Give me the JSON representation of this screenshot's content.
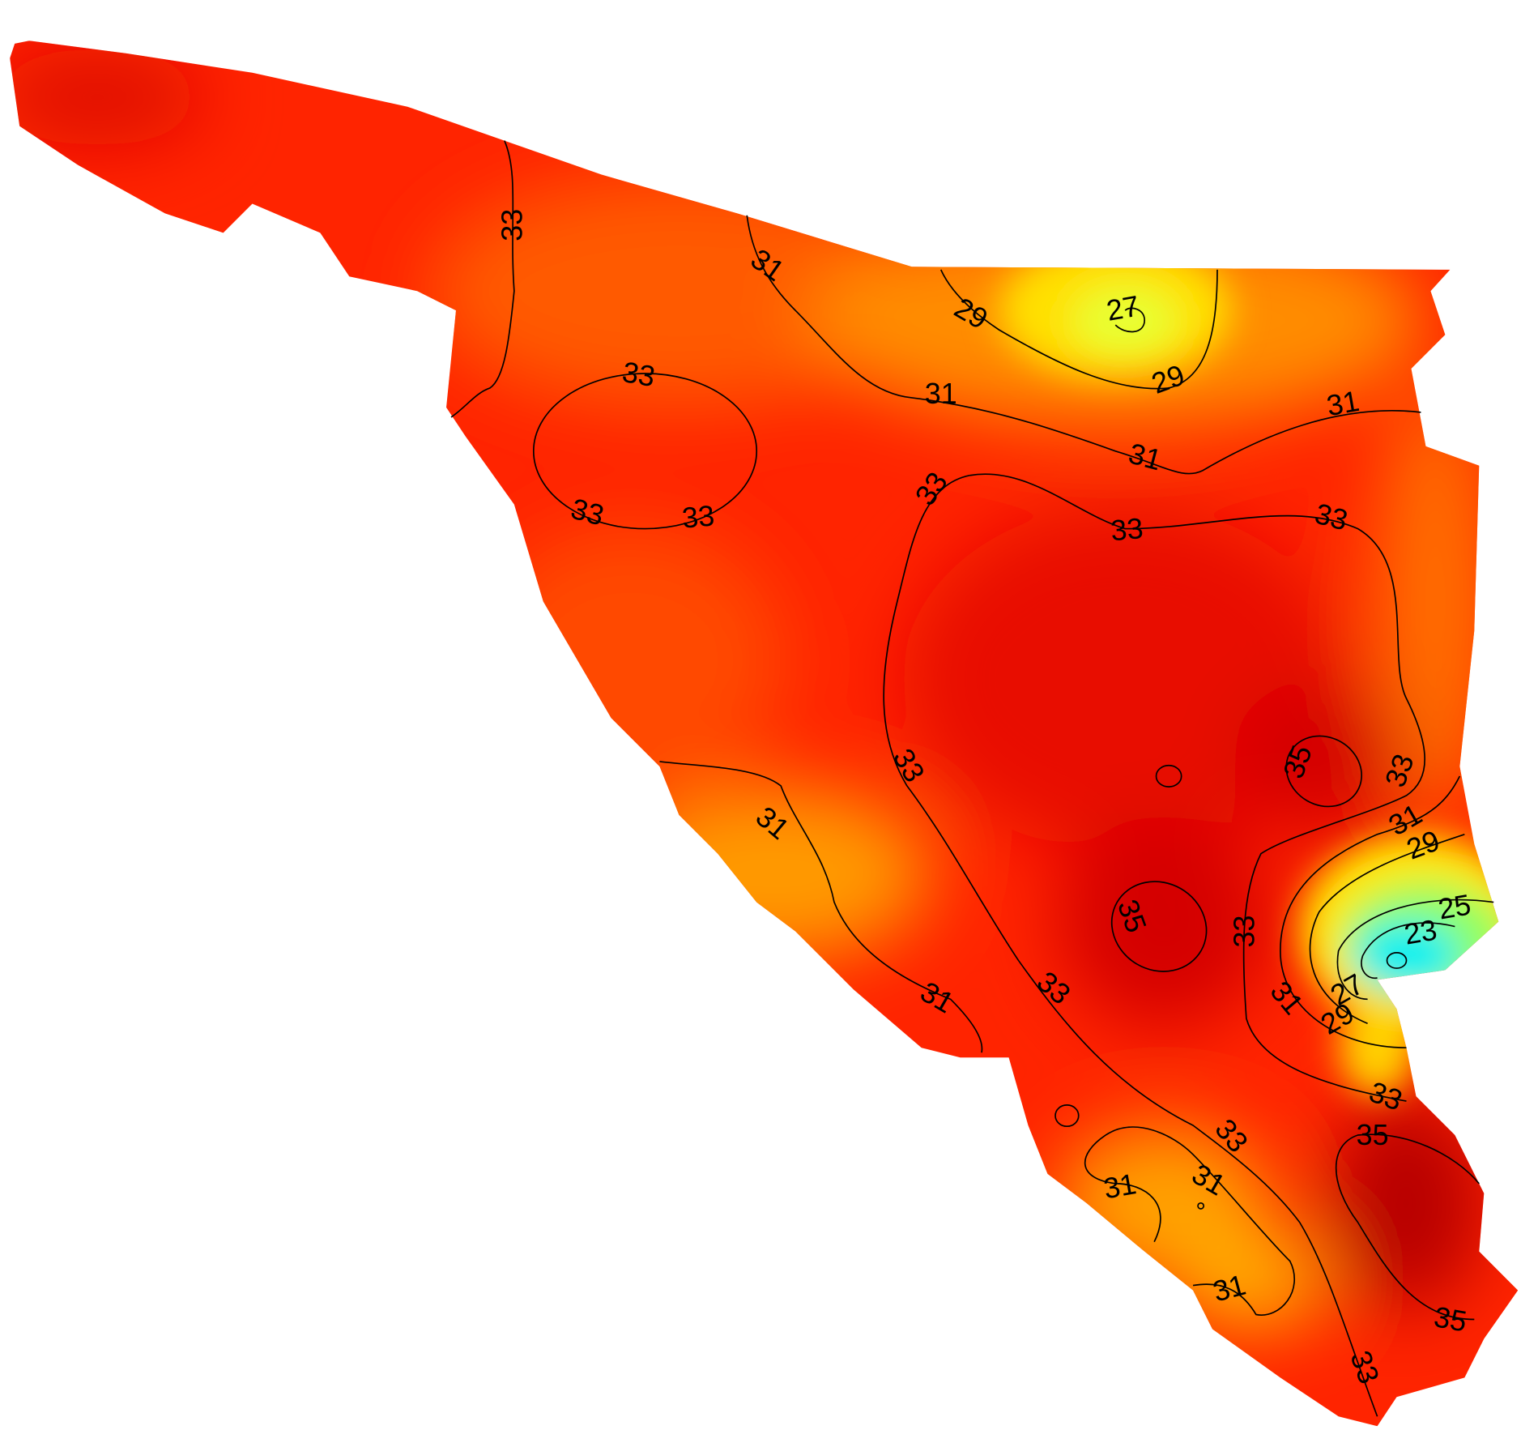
{
  "contour_labels": [
    "33",
    "31",
    "29",
    "27",
    "29",
    "31",
    "31",
    "31",
    "33",
    "33",
    "33",
    "33",
    "33",
    "33",
    "35",
    "33",
    "33",
    "31",
    "31",
    "29",
    "25",
    "35",
    "33",
    "23",
    "33",
    "31",
    "31",
    "27",
    "29",
    "33",
    "33",
    "35",
    "31",
    "31",
    "31",
    "35",
    "33"
  ]
}
